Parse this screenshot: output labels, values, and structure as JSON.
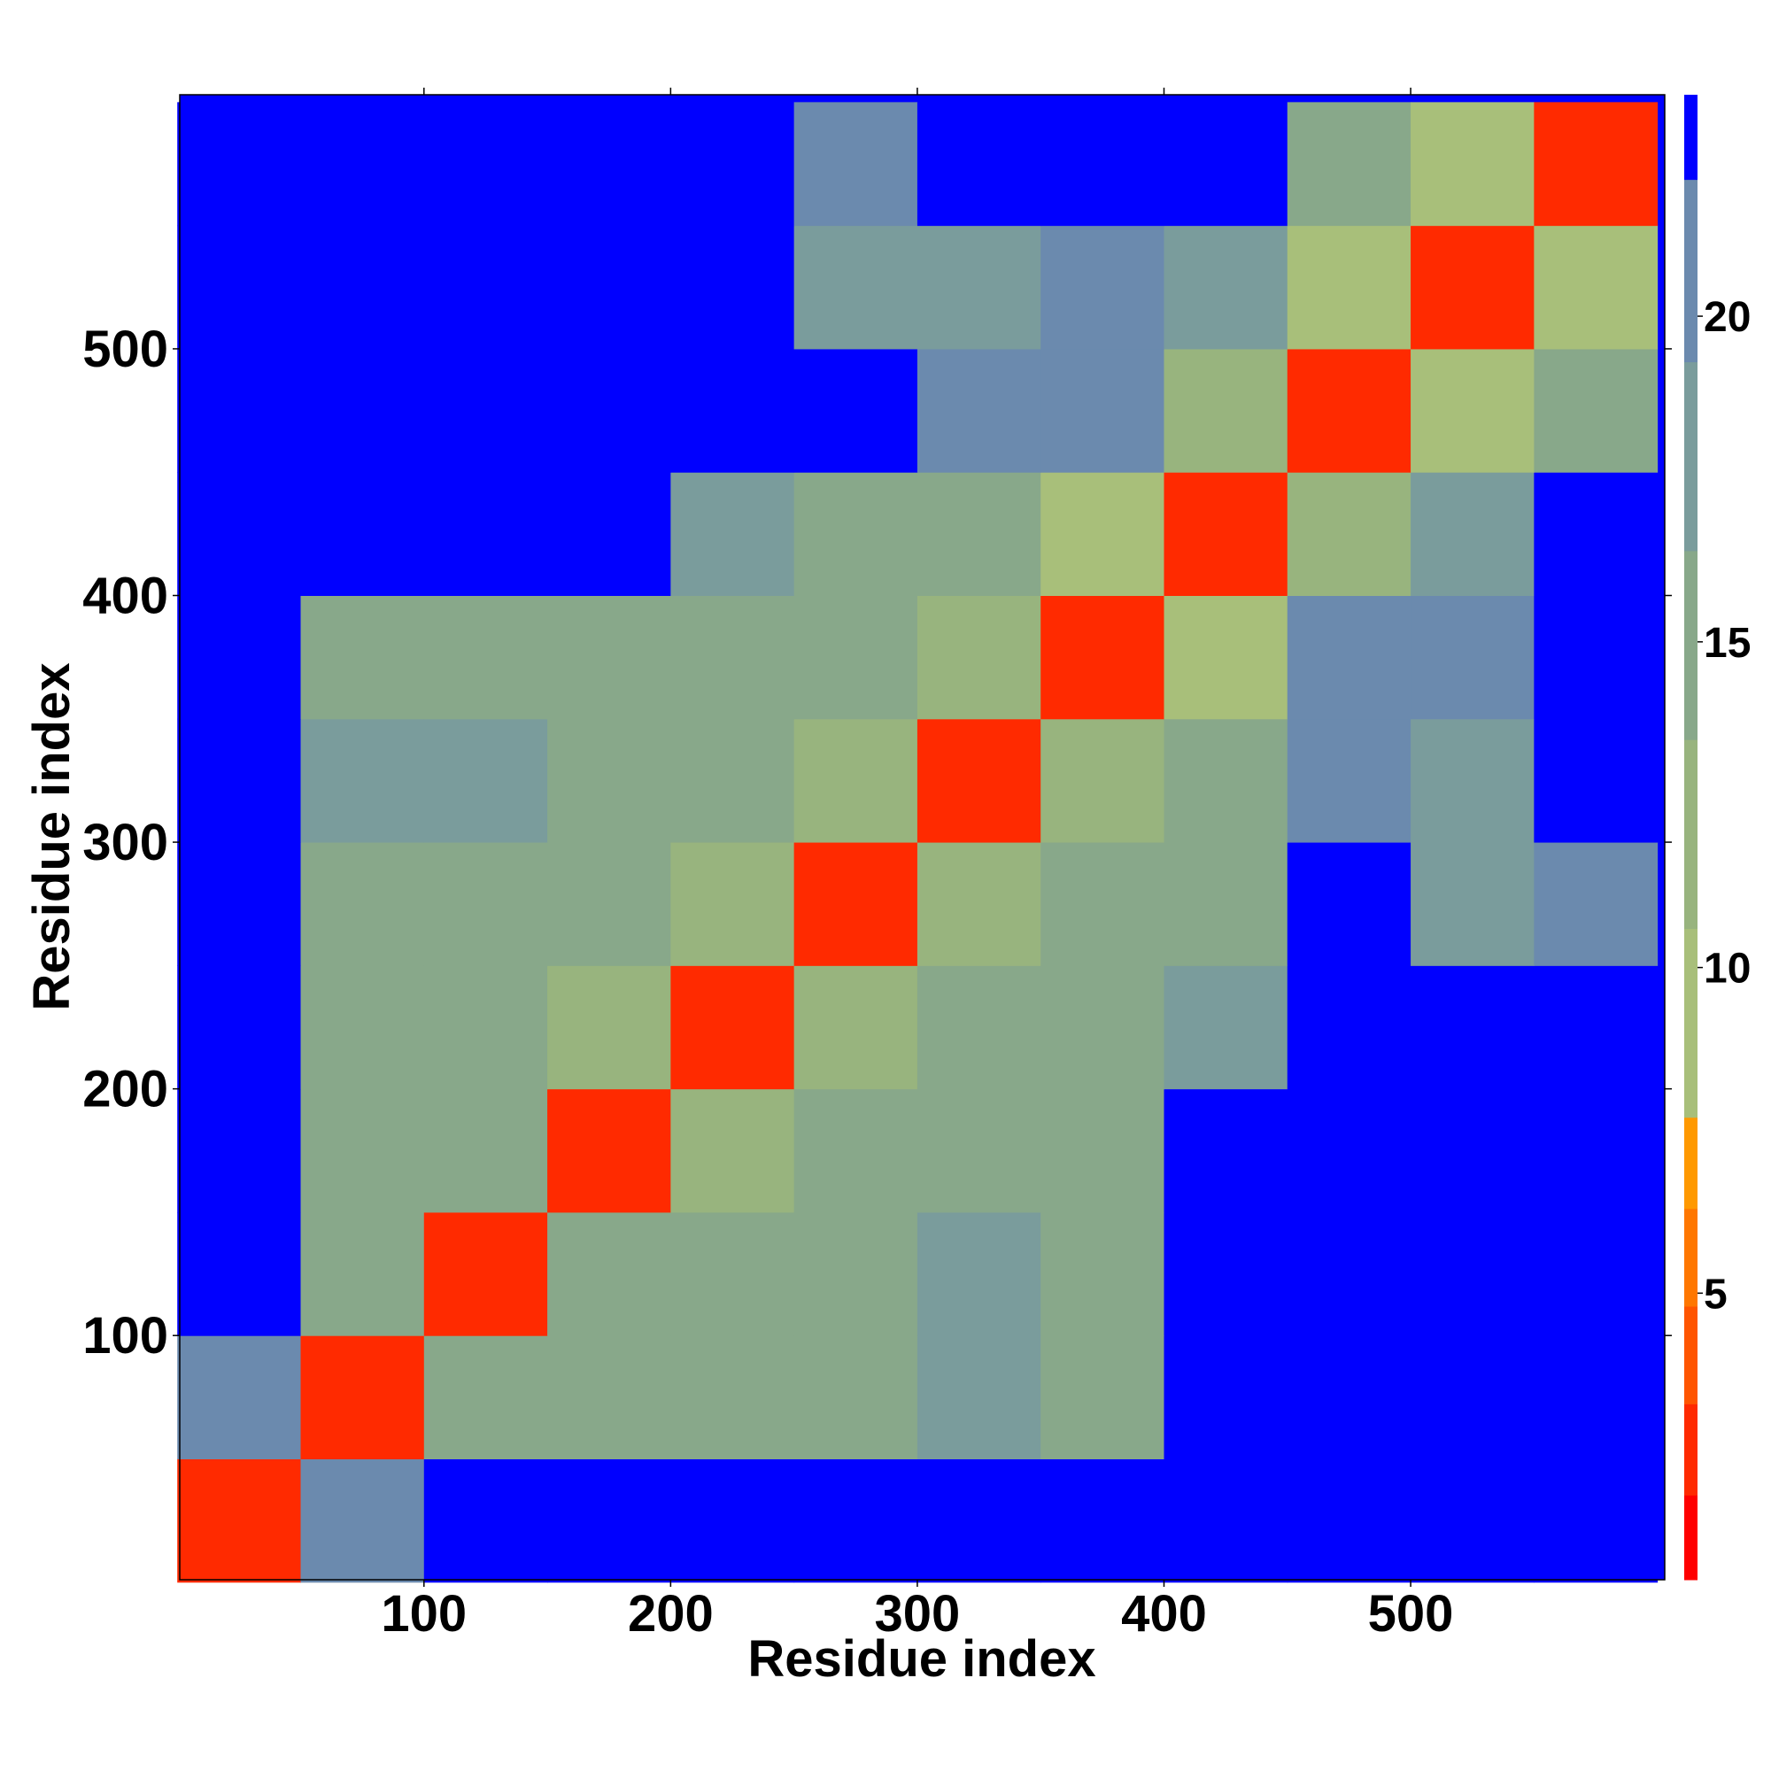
{
  "chart_data": {
    "type": "heatmap",
    "xlabel": "Residue index",
    "ylabel": "Residue index",
    "x": [
      25,
      75,
      125,
      175,
      225,
      275,
      325,
      375,
      425,
      475,
      525,
      575
    ],
    "y": [
      25,
      75,
      125,
      175,
      225,
      275,
      325,
      375,
      425,
      475,
      525,
      575
    ],
    "z": [
      [
        3,
        22,
        23,
        23,
        23,
        23,
        23,
        23,
        23,
        23,
        23,
        23
      ],
      [
        22,
        3,
        15,
        16,
        16,
        15,
        18,
        16,
        23,
        23,
        23,
        23
      ],
      [
        23,
        15,
        3,
        14,
        14,
        14,
        17,
        15,
        23,
        23,
        23,
        23
      ],
      [
        23,
        16,
        14,
        3,
        12,
        14,
        15,
        15,
        23,
        23,
        23,
        23
      ],
      [
        23,
        16,
        14,
        12,
        3,
        13,
        14,
        14,
        17,
        23,
        23,
        23
      ],
      [
        23,
        15,
        14,
        14,
        13,
        3,
        12,
        14,
        16,
        23,
        18,
        20
      ],
      [
        23,
        18,
        17,
        15,
        14,
        12,
        3,
        12,
        14,
        22,
        19,
        23
      ],
      [
        23,
        16,
        15,
        15,
        14,
        14,
        12,
        3,
        10,
        22,
        21,
        23
      ],
      [
        23,
        23,
        23,
        23,
        17,
        16,
        14,
        10,
        3,
        12,
        19,
        23
      ],
      [
        23,
        23,
        23,
        23,
        23,
        23,
        22,
        22,
        12,
        3,
        10,
        14
      ],
      [
        23,
        23,
        23,
        23,
        23,
        18,
        19,
        21,
        19,
        10,
        3,
        10
      ],
      [
        23,
        23,
        23,
        23,
        23,
        20,
        23,
        23,
        23,
        14,
        10,
        3
      ]
    ],
    "xlim": [
      1,
      603
    ],
    "ylim": [
      1,
      603
    ],
    "xticks": [
      100,
      200,
      300,
      400,
      500
    ],
    "yticks": [
      100,
      200,
      300,
      400,
      500
    ],
    "zlim": [
      0.6,
      23.4
    ],
    "zticks": [
      5,
      10,
      15,
      20
    ],
    "levels": [
      0.6,
      1.9,
      3.3,
      4.8,
      6.3,
      7.7,
      10.6,
      13.5,
      16.4,
      19.3,
      22.1,
      23.4
    ],
    "colors": [
      "#ff0000",
      "#ff2a00",
      "#ff5500",
      "#ff7700",
      "#ff9900",
      "#a8bf7a",
      "#98b47e",
      "#88a88a",
      "#7a9c9c",
      "#6b8aae",
      "#0000ff"
    ]
  }
}
